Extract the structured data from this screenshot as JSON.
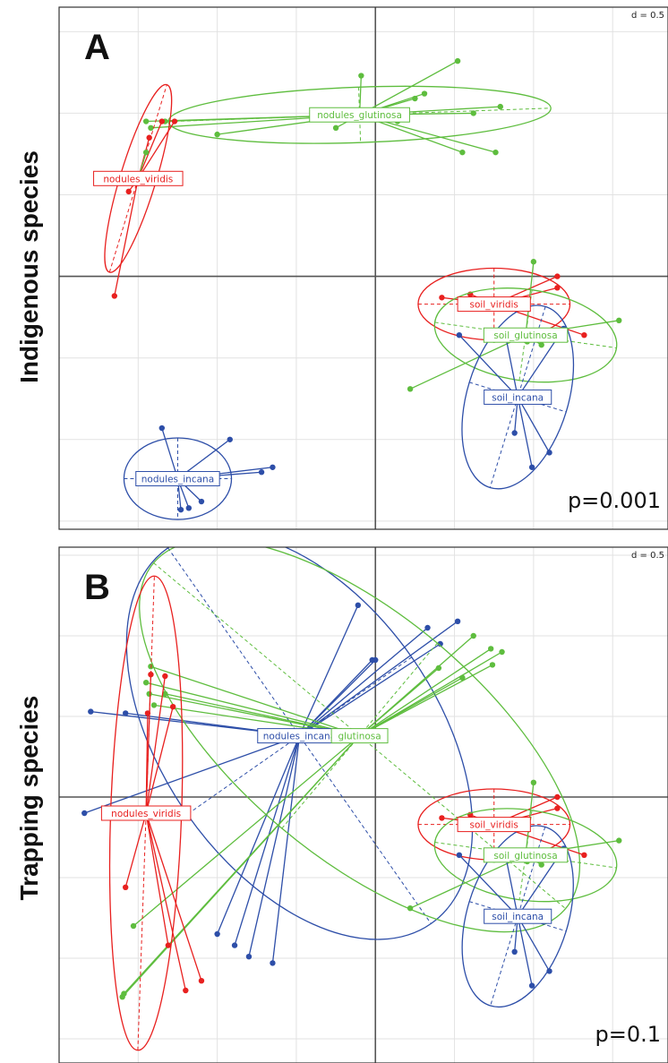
{
  "row_labels": {
    "a": "Indigenous species",
    "b": "Trapping species"
  },
  "colors": {
    "viridis": "#e8201f",
    "glutinosa": "#5ebd3e",
    "incana": "#2d4ea8"
  },
  "chart_data": [
    {
      "type": "scatter",
      "panel": "A",
      "scale_label": "d = 0.5",
      "p_value": "p=0.001",
      "xlim": [
        -2.0,
        1.85
      ],
      "ylim": [
        -1.55,
        1.65
      ],
      "grid_step": 0.5,
      "groups": [
        {
          "label": "nodules_glutinosa",
          "color": "glutinosa",
          "centroid": [
            -0.1,
            0.99
          ],
          "ellipse": {
            "rx": 1.21,
            "ry": 0.17,
            "angle": 2
          },
          "points": [
            [
              0.52,
              1.32
            ],
            [
              -0.09,
              1.23
            ],
            [
              0.31,
              1.12
            ],
            [
              0.25,
              1.09
            ],
            [
              0.79,
              1.04
            ],
            [
              0.62,
              1.0
            ],
            [
              0.14,
              0.95
            ],
            [
              -0.25,
              0.91
            ],
            [
              0.55,
              0.76
            ],
            [
              0.76,
              0.76
            ],
            [
              -1.0,
              0.87
            ],
            [
              -1.45,
              0.95
            ],
            [
              -1.33,
              0.95
            ],
            [
              -1.42,
              0.91
            ]
          ]
        },
        {
          "label": "nodules_viridis",
          "color": "viridis",
          "centroid": [
            -1.5,
            0.6
          ],
          "ellipse": {
            "rx": 0.62,
            "ry": 0.11,
            "angle": 73
          },
          "points": [
            [
              -1.27,
              0.95
            ],
            [
              -1.35,
              0.95
            ],
            [
              -1.43,
              0.85
            ],
            [
              -1.56,
              0.52
            ],
            [
              -1.65,
              -0.12
            ]
          ]
        },
        {
          "label": "nodules_glutinosa",
          "color": "glutinosa",
          "centroid": [
            -1.5,
            0.6
          ],
          "hidden_label": true,
          "points": [
            [
              -1.45,
              0.76
            ]
          ]
        },
        {
          "label": "soil_viridis",
          "color": "viridis",
          "centroid": [
            0.75,
            -0.17
          ],
          "ellipse": {
            "rx": 0.48,
            "ry": 0.22,
            "angle": 0
          },
          "points": [
            [
              1.15,
              -0.0
            ],
            [
              1.15,
              -0.07
            ],
            [
              0.6,
              -0.11
            ],
            [
              0.42,
              -0.13
            ],
            [
              1.32,
              -0.36
            ]
          ]
        },
        {
          "label": "soil_glutinosa",
          "color": "glutinosa",
          "centroid": [
            0.95,
            -0.36
          ],
          "ellipse": {
            "rx": 0.58,
            "ry": 0.28,
            "angle": -8
          },
          "points": [
            [
              1.0,
              0.09
            ],
            [
              1.54,
              -0.27
            ],
            [
              1.05,
              -0.42
            ],
            [
              0.96,
              -0.4
            ],
            [
              0.75,
              -0.39
            ],
            [
              0.22,
              -0.69
            ]
          ]
        },
        {
          "label": "soil_incana",
          "color": "incana",
          "centroid": [
            0.9,
            -0.74
          ],
          "ellipse": {
            "rx": 0.32,
            "ry": 0.58,
            "angle": -17
          },
          "points": [
            [
              0.53,
              -0.36
            ],
            [
              0.82,
              -0.35
            ],
            [
              1.19,
              -0.32
            ],
            [
              0.88,
              -0.96
            ],
            [
              1.1,
              -1.08
            ],
            [
              0.99,
              -1.17
            ]
          ]
        },
        {
          "label": "nodules_incana",
          "color": "incana",
          "centroid": [
            -1.25,
            -1.24
          ],
          "ellipse": {
            "rx": 0.34,
            "ry": 0.25,
            "angle": 0
          },
          "points": [
            [
              -1.35,
              -0.93
            ],
            [
              -0.92,
              -1.0
            ],
            [
              -0.65,
              -1.17
            ],
            [
              -0.72,
              -1.2
            ],
            [
              -1.1,
              -1.38
            ],
            [
              -1.18,
              -1.42
            ],
            [
              -1.23,
              -1.43
            ]
          ]
        }
      ]
    },
    {
      "type": "scatter",
      "panel": "B",
      "scale_label": "d = 0.5",
      "p_value": "p=0.1",
      "xlim": [
        -2.0,
        1.85
      ],
      "ylim": [
        -1.65,
        1.55
      ],
      "grid_step": 0.5,
      "groups": [
        {
          "label": "nodules_incana",
          "color": "incana",
          "centroid": [
            -0.48,
            0.38
          ],
          "ellipse": {
            "rx": 1.45,
            "ry": 0.85,
            "angle": -55
          },
          "points": [
            [
              -0.11,
              1.19
            ],
            [
              0.33,
              1.05
            ],
            [
              0.41,
              0.95
            ],
            [
              0.52,
              1.09
            ],
            [
              -0.02,
              0.85
            ],
            [
              0.0,
              0.85
            ],
            [
              -1.58,
              0.52
            ],
            [
              -1.8,
              0.53
            ],
            [
              -1.84,
              -0.1
            ],
            [
              -0.89,
              -0.92
            ],
            [
              -0.8,
              -0.99
            ],
            [
              -0.65,
              -1.03
            ],
            [
              -1.0,
              -0.85
            ]
          ]
        },
        {
          "label": "glutinosa",
          "color": "glutinosa",
          "centroid": [
            -0.1,
            0.38
          ],
          "ellipse": {
            "rx": 1.7,
            "ry": 0.75,
            "angle": -40
          },
          "points": [
            [
              0.62,
              1.0
            ],
            [
              0.73,
              0.92
            ],
            [
              0.74,
              0.82
            ],
            [
              0.8,
              0.9
            ],
            [
              0.4,
              0.8
            ],
            [
              0.55,
              0.74
            ],
            [
              -1.42,
              0.81
            ],
            [
              -1.45,
              0.71
            ],
            [
              -1.43,
              0.64
            ],
            [
              -1.33,
              0.64
            ],
            [
              -1.4,
              0.57
            ],
            [
              -1.53,
              -0.8
            ],
            [
              -1.6,
              -1.24
            ],
            [
              -1.59,
              -1.22
            ]
          ]
        },
        {
          "label": "nodules_viridis",
          "color": "viridis",
          "centroid": [
            -1.45,
            -0.1
          ],
          "ellipse": {
            "rx": 1.5,
            "ry": 0.22,
            "angle": 88
          },
          "points": [
            [
              -1.42,
              0.76
            ],
            [
              -1.33,
              0.75
            ],
            [
              -1.28,
              0.56
            ],
            [
              -1.44,
              0.52
            ],
            [
              -1.53,
              -0.1
            ],
            [
              -1.58,
              -0.56
            ],
            [
              -1.31,
              -0.92
            ],
            [
              -1.1,
              -1.14
            ],
            [
              -1.2,
              -1.2
            ]
          ]
        },
        {
          "label": "soil_viridis",
          "color": "viridis",
          "centroid": [
            0.75,
            -0.17
          ],
          "ellipse": {
            "rx": 0.48,
            "ry": 0.22,
            "angle": 0
          },
          "points": [
            [
              1.15,
              -0.0
            ],
            [
              1.15,
              -0.07
            ],
            [
              0.6,
              -0.11
            ],
            [
              0.42,
              -0.13
            ],
            [
              1.32,
              -0.36
            ]
          ]
        },
        {
          "label": "soil_glutinosa",
          "color": "glutinosa",
          "centroid": [
            0.95,
            -0.36
          ],
          "ellipse": {
            "rx": 0.58,
            "ry": 0.28,
            "angle": -8
          },
          "points": [
            [
              1.0,
              0.09
            ],
            [
              1.54,
              -0.27
            ],
            [
              1.05,
              -0.42
            ],
            [
              0.96,
              -0.4
            ],
            [
              0.75,
              -0.39
            ],
            [
              0.22,
              -0.69
            ]
          ]
        },
        {
          "label": "soil_incana",
          "color": "incana",
          "centroid": [
            0.9,
            -0.74
          ],
          "ellipse": {
            "rx": 0.32,
            "ry": 0.58,
            "angle": -17
          },
          "points": [
            [
              0.53,
              -0.36
            ],
            [
              0.82,
              -0.35
            ],
            [
              1.19,
              -0.32
            ],
            [
              0.88,
              -0.96
            ],
            [
              1.1,
              -1.08
            ],
            [
              0.99,
              -1.17
            ]
          ]
        }
      ]
    }
  ]
}
